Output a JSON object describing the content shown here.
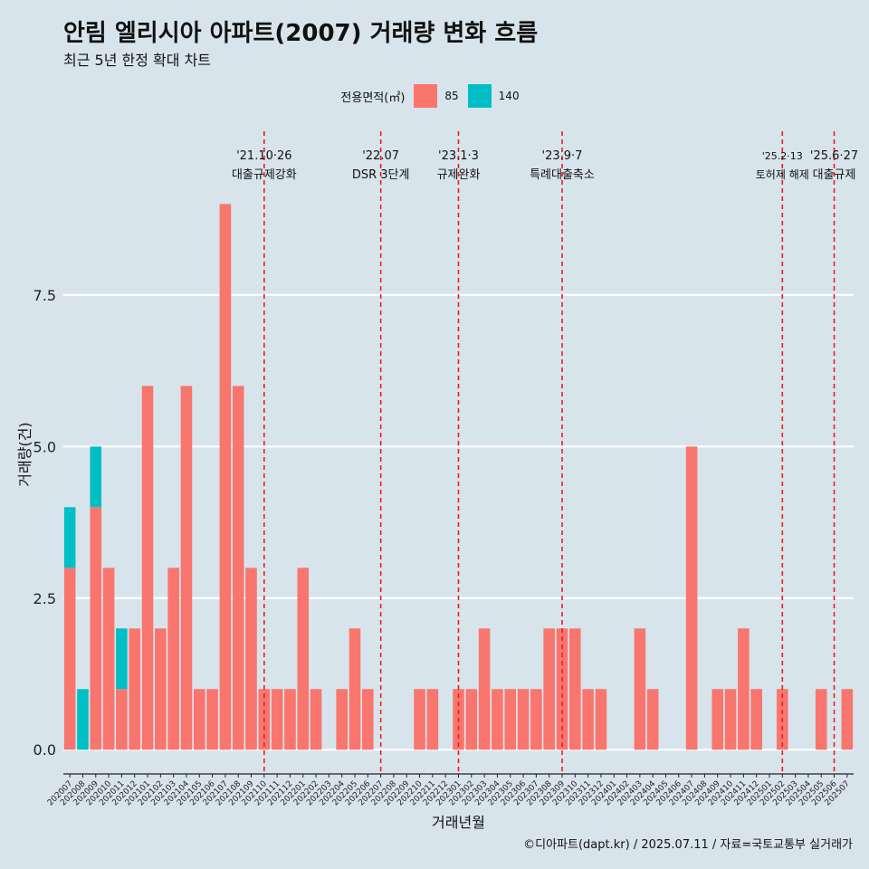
{
  "title": "안림 엘리시아 아파트(2007) 거래량 변화 흐름",
  "subtitle": "최근 5년 한정 확대 차트",
  "legend": {
    "title": "전용면적(㎡)",
    "items": [
      {
        "label": "85",
        "color": "#f8766d"
      },
      {
        "label": "140",
        "color": "#00bfc4"
      }
    ]
  },
  "caption": "©디아파트(dapt.kr) / 2025.07.11 / 자료=국토교통부 실거래가",
  "chart_data": {
    "type": "bar",
    "stacked": true,
    "xlabel": "거래년월",
    "ylabel": "거래량(건)",
    "ylim": [
      -0.4,
      10.2
    ],
    "yticks": [
      0,
      2.5,
      5,
      7.5
    ],
    "ytick_labels": [
      "0.0",
      "2.5",
      "5.0",
      "7.5"
    ],
    "grid": "horizontal",
    "legend_position": "top",
    "categories": [
      "202007",
      "202008",
      "202009",
      "202010",
      "202011",
      "202012",
      "202101",
      "202102",
      "202103",
      "202104",
      "202105",
      "202106",
      "202107",
      "202108",
      "202109",
      "202110",
      "202111",
      "202112",
      "202201",
      "202202",
      "202203",
      "202204",
      "202205",
      "202206",
      "202207",
      "202208",
      "202209",
      "202210",
      "202211",
      "202212",
      "202301",
      "202302",
      "202303",
      "202304",
      "202305",
      "202306",
      "202307",
      "202308",
      "202309",
      "202310",
      "202311",
      "202312",
      "202401",
      "202402",
      "202403",
      "202404",
      "202405",
      "202406",
      "202407",
      "202408",
      "202409",
      "202410",
      "202411",
      "202412",
      "202501",
      "202502",
      "202503",
      "202504",
      "202505",
      "202506",
      "202507"
    ],
    "series": [
      {
        "name": "85",
        "color": "#f8766d",
        "values": [
          3,
          0,
          4,
          3,
          1,
          2,
          6,
          2,
          3,
          6,
          1,
          1,
          9,
          6,
          3,
          1,
          1,
          1,
          3,
          1,
          0,
          1,
          2,
          1,
          0,
          0,
          0,
          1,
          1,
          0,
          1,
          1,
          2,
          1,
          1,
          1,
          1,
          2,
          2,
          2,
          1,
          1,
          0,
          0,
          2,
          1,
          0,
          0,
          5,
          0,
          1,
          1,
          2,
          1,
          0,
          1,
          0,
          0,
          1,
          0,
          1
        ]
      },
      {
        "name": "140",
        "color": "#00bfc4",
        "values": [
          1,
          1,
          1,
          0,
          1,
          0,
          0,
          0,
          0,
          0,
          0,
          0,
          0,
          0,
          0,
          0,
          0,
          0,
          0,
          0,
          0,
          0,
          0,
          0,
          0,
          0,
          0,
          0,
          0,
          0,
          0,
          0,
          0,
          0,
          0,
          0,
          0,
          0,
          0,
          0,
          0,
          0,
          0,
          0,
          0,
          0,
          0,
          0,
          0,
          0,
          0,
          0,
          0,
          0,
          0,
          0,
          0,
          0,
          0,
          0,
          0
        ]
      }
    ],
    "events": [
      {
        "month": "202110",
        "date": "'21.10·26",
        "label": "대출규제강화"
      },
      {
        "month": "202207",
        "date": "'22.07",
        "label": "DSR 3단계"
      },
      {
        "month": "202301",
        "date": "'23.1·3",
        "label": "규제완화"
      },
      {
        "month": "202309",
        "date": "'23.9·7",
        "label": "특례대출축소"
      },
      {
        "month": "202502",
        "date": "'25.2·13",
        "label": "토허제 해제"
      },
      {
        "month": "202506",
        "date": "'25.6·27",
        "label": "대출규제"
      }
    ]
  }
}
